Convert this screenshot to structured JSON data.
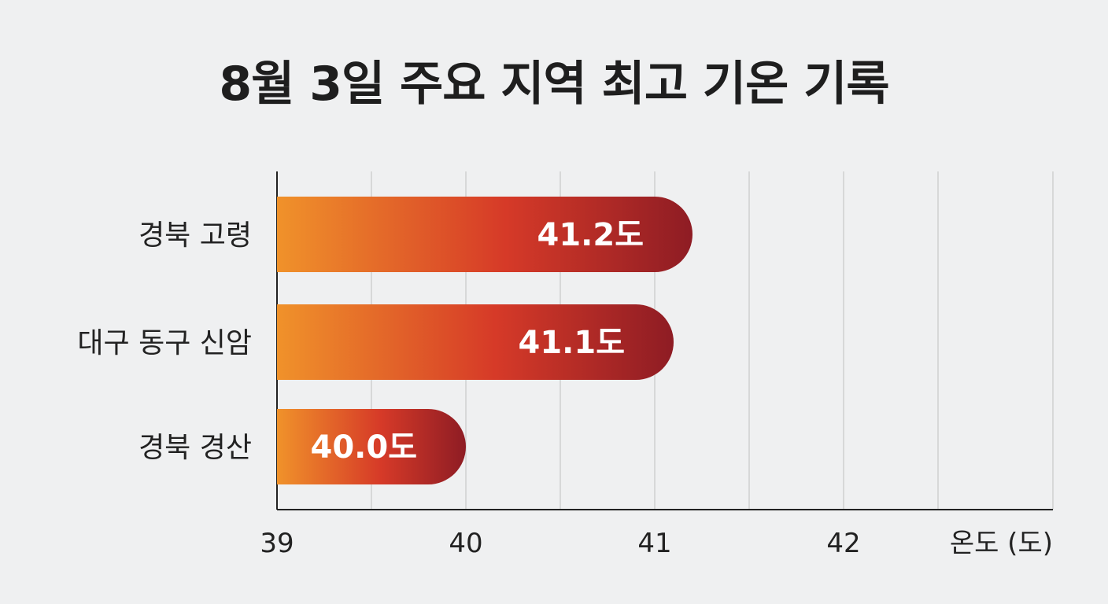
{
  "chart_data": {
    "type": "bar",
    "orientation": "horizontal",
    "title": "8월 3일 주요 지역 최고 기온 기록",
    "categories": [
      "경북 고령",
      "대구 동구 신암",
      "경북 경산"
    ],
    "values": [
      41.2,
      41.1,
      40.0
    ],
    "data_labels": [
      "41.2도",
      "41.1도",
      "40.0도"
    ],
    "xlabel": "온도 (도)",
    "ylabel": "",
    "xlim": [
      39,
      42.1
    ],
    "x_ticks": [
      39,
      40,
      41,
      42
    ],
    "x_tick_labels": [
      "39",
      "40",
      "41",
      "42"
    ],
    "grid": "vertical",
    "colors": {
      "bar_gradient_start": "#f0922a",
      "bar_gradient_mid": "#d63a28",
      "bar_gradient_end": "#8e1c24",
      "grid": "#cfcfcf",
      "axis": "#222222",
      "text": "#1e1e1e"
    }
  }
}
